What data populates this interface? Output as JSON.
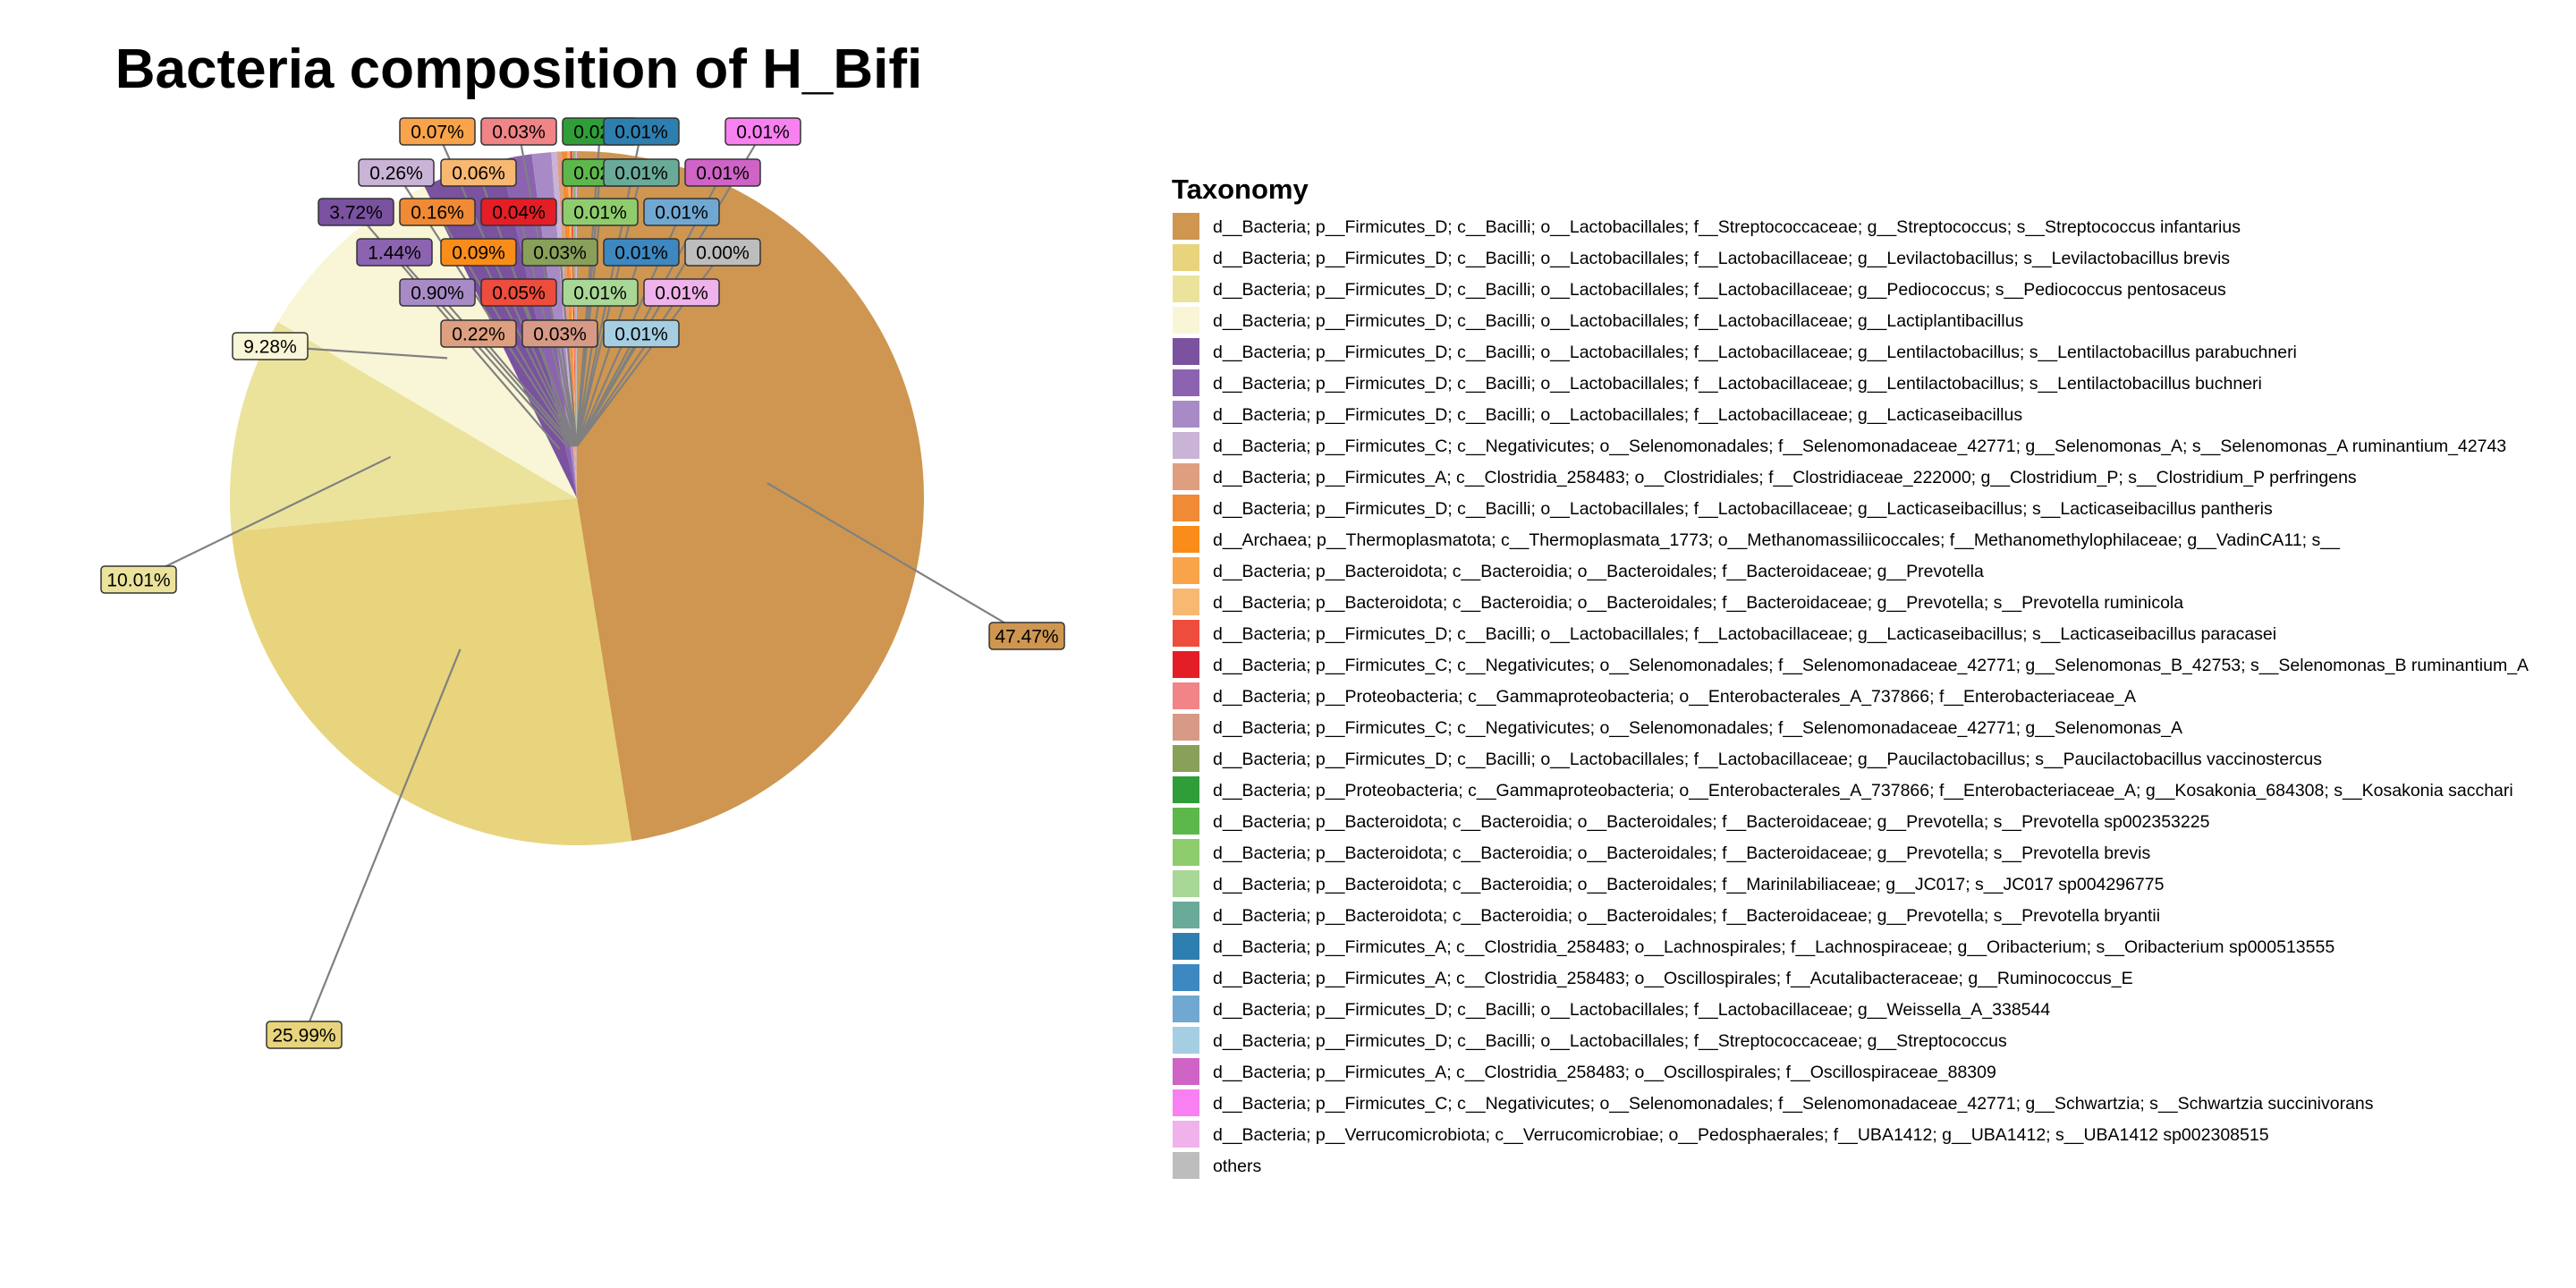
{
  "chart_data": {
    "type": "pie",
    "title": "Bacteria composition of H_Bifi",
    "legend_title": "Taxonomy",
    "legend_position": "right",
    "slices": [
      {
        "label": "d__Bacteria; p__Firmicutes_D; c__Bacilli; o__Lactobacillales; f__Streptococcaceae; g__Streptococcus; s__Streptococcus infantarius",
        "value": 47.47,
        "pct": "47.47%",
        "color": "#CE9650"
      },
      {
        "label": "d__Bacteria; p__Firmicutes_D; c__Bacilli; o__Lactobacillales; f__Lactobacillaceae; g__Levilactobacillus; s__Levilactobacillus brevis",
        "value": 25.99,
        "pct": "25.99%",
        "color": "#E8D47C"
      },
      {
        "label": "d__Bacteria; p__Firmicutes_D; c__Bacilli; o__Lactobacillales; f__Lactobacillaceae; g__Pediococcus; s__Pediococcus pentosaceus",
        "value": 10.01,
        "pct": "10.01%",
        "color": "#EBE39C"
      },
      {
        "label": "d__Bacteria; p__Firmicutes_D; c__Bacilli; o__Lactobacillales; f__Lactobacillaceae; g__Lactiplantibacillus",
        "value": 9.28,
        "pct": "9.28%",
        "color": "#F8F6D6"
      },
      {
        "label": "d__Bacteria; p__Firmicutes_D; c__Bacilli; o__Lactobacillales; f__Lactobacillaceae; g__Lentilactobacillus; s__Lentilactobacillus parabuchneri",
        "value": 3.72,
        "pct": "3.72%",
        "color": "#7A52A0"
      },
      {
        "label": "d__Bacteria; p__Firmicutes_D; c__Bacilli; o__Lactobacillales; f__Lactobacillaceae; g__Lentilactobacillus; s__Lentilactobacillus buchneri",
        "value": 1.44,
        "pct": "1.44%",
        "color": "#8B63B0"
      },
      {
        "label": "d__Bacteria; p__Firmicutes_D; c__Bacilli; o__Lactobacillales; f__Lactobacillaceae; g__Lacticaseibacillus",
        "value": 0.9,
        "pct": "0.90%",
        "color": "#A88BC6"
      },
      {
        "label": "d__Bacteria; p__Firmicutes_C; c__Negativicutes; o__Selenomonadales; f__Selenomonadaceae_42771; g__Selenomonas_A; s__Selenomonas_A ruminantium_42743",
        "value": 0.26,
        "pct": "0.26%",
        "color": "#C9B3D6"
      },
      {
        "label": "d__Bacteria; p__Firmicutes_A; c__Clostridia_258483; o__Clostridiales; f__Clostridiaceae_222000; g__Clostridium_P; s__Clostridium_P perfringens",
        "value": 0.22,
        "pct": "0.22%",
        "color": "#DE9F80"
      },
      {
        "label": "d__Bacteria; p__Firmicutes_D; c__Bacilli; o__Lactobacillales; f__Lactobacillaceae; g__Lacticaseibacillus; s__Lacticaseibacillus pantheris",
        "value": 0.16,
        "pct": "0.16%",
        "color": "#F08A35"
      },
      {
        "label": "d__Archaea; p__Thermoplasmatota; c__Thermoplasmata_1773; o__Methanomassiliicoccales; f__Methanomethylophilaceae; g__VadinCA11; s__",
        "value": 0.09,
        "pct": "0.09%",
        "color": "#FA8C1A"
      },
      {
        "label": "d__Bacteria; p__Bacteroidota; c__Bacteroidia; o__Bacteroidales; f__Bacteroidaceae; g__Prevotella",
        "value": 0.07,
        "pct": "0.07%",
        "color": "#F9A44A"
      },
      {
        "label": "d__Bacteria; p__Bacteroidota; c__Bacteroidia; o__Bacteroidales; f__Bacteroidaceae; g__Prevotella; s__Prevotella ruminicola",
        "value": 0.06,
        "pct": "0.06%",
        "color": "#F7B872"
      },
      {
        "label": "d__Bacteria; p__Firmicutes_D; c__Bacilli; o__Lactobacillales; f__Lactobacillaceae; g__Lacticaseibacillus; s__Lacticaseibacillus paracasei",
        "value": 0.05,
        "pct": "0.05%",
        "color": "#EE4C3C"
      },
      {
        "label": "d__Bacteria; p__Firmicutes_C; c__Negativicutes; o__Selenomonadales; f__Selenomonadaceae_42771; g__Selenomonas_B_42753; s__Selenomonas_B ruminantium_A",
        "value": 0.04,
        "pct": "0.04%",
        "color": "#E41E26"
      },
      {
        "label": "d__Bacteria; p__Proteobacteria; c__Gammaproteobacteria; o__Enterobacterales_A_737866; f__Enterobacteriaceae_A",
        "value": 0.03,
        "pct": "0.03%",
        "color": "#F08486"
      },
      {
        "label": "d__Bacteria; p__Firmicutes_C; c__Negativicutes; o__Selenomonadales; f__Selenomonadaceae_42771; g__Selenomonas_A",
        "value": 0.03,
        "pct": "0.03%",
        "color": "#D69A86"
      },
      {
        "label": "d__Bacteria; p__Firmicutes_D; c__Bacilli; o__Lactobacillales; f__Lactobacillaceae; g__Paucilactobacillus; s__Paucilactobacillus vaccinostercus",
        "value": 0.03,
        "pct": "0.03%",
        "color": "#88A05A"
      },
      {
        "label": "d__Bacteria; p__Proteobacteria; c__Gammaproteobacteria; o__Enterobacterales_A_737866; f__Enterobacteriaceae_A; g__Kosakonia_684308; s__Kosakonia sacchari",
        "value": 0.02,
        "pct": "0.02%",
        "color": "#2F9E38"
      },
      {
        "label": "d__Bacteria; p__Bacteroidota; c__Bacteroidia; o__Bacteroidales; f__Bacteroidaceae; g__Prevotella; s__Prevotella sp002353225",
        "value": 0.02,
        "pct": "0.02%",
        "color": "#5DB84C"
      },
      {
        "label": "d__Bacteria; p__Bacteroidota; c__Bacteroidia; o__Bacteroidales; f__Bacteroidaceae; g__Prevotella; s__Prevotella brevis",
        "value": 0.01,
        "pct": "0.01%",
        "color": "#8FCC6E"
      },
      {
        "label": "d__Bacteria; p__Bacteroidota; c__Bacteroidia; o__Bacteroidales; f__Marinilabiliaceae; g__JC017; s__JC017 sp004296775",
        "value": 0.01,
        "pct": "0.01%",
        "color": "#A8D796"
      },
      {
        "label": "d__Bacteria; p__Bacteroidota; c__Bacteroidia; o__Bacteroidales; f__Bacteroidaceae; g__Prevotella; s__Prevotella bryantii",
        "value": 0.01,
        "pct": "0.01%",
        "color": "#6AAA99"
      },
      {
        "label": "d__Bacteria; p__Firmicutes_A; c__Clostridia_258483; o__Lachnospirales; f__Lachnospiraceae; g__Oribacterium; s__Oribacterium sp000513555",
        "value": 0.01,
        "pct": "0.01%",
        "color": "#2D7FB0"
      },
      {
        "label": "d__Bacteria; p__Firmicutes_A; c__Clostridia_258483; o__Oscillospirales; f__Acutalibacteraceae; g__Ruminococcus_E",
        "value": 0.01,
        "pct": "0.01%",
        "color": "#3D88C0"
      },
      {
        "label": "d__Bacteria; p__Firmicutes_D; c__Bacilli; o__Lactobacillales; f__Lactobacillaceae; g__Weissella_A_338544",
        "value": 0.01,
        "pct": "0.01%",
        "color": "#70A8D2"
      },
      {
        "label": "d__Bacteria; p__Firmicutes_D; c__Bacilli; o__Lactobacillales; f__Streptococcaceae; g__Streptococcus",
        "value": 0.01,
        "pct": "0.01%",
        "color": "#A6CEE3"
      },
      {
        "label": "d__Bacteria; p__Firmicutes_A; c__Clostridia_258483; o__Oscillospirales; f__Oscillospiraceae_88309",
        "value": 0.01,
        "pct": "0.01%",
        "color": "#CF63C6"
      },
      {
        "label": "d__Bacteria; p__Firmicutes_C; c__Negativicutes; o__Selenomonadales; f__Selenomonadaceae_42771; g__Schwartzia; s__Schwartzia succinivorans",
        "value": 0.01,
        "pct": "0.01%",
        "color": "#F980F0"
      },
      {
        "label": "d__Bacteria; p__Verrucomicrobiota; c__Verrucomicrobiae; o__Pedosphaerales; f__UBA1412; g__UBA1412; s__UBA1412 sp002308515",
        "value": 0.01,
        "pct": "0.01%",
        "color": "#F0B2EA"
      },
      {
        "label": "others",
        "value": 0.0,
        "pct": "0.00%",
        "color": "#BDBDBD"
      }
    ]
  }
}
